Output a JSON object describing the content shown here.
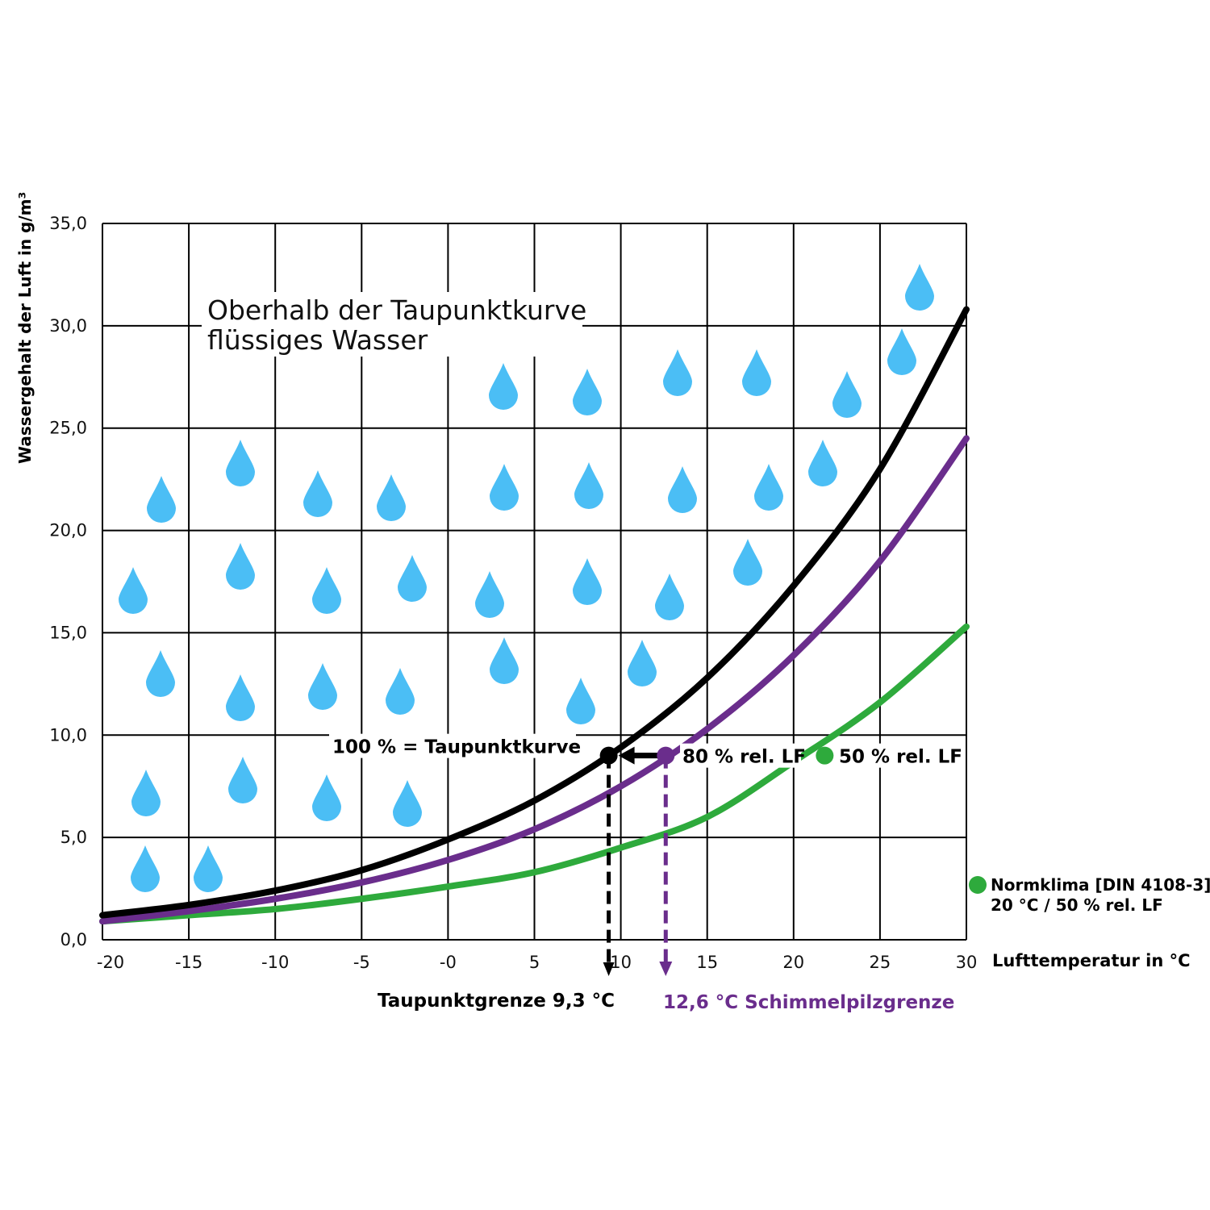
{
  "chart_data": {
    "type": "line",
    "ylabel": "Wassergehalt der Luft in g/m³",
    "xlabel": "Lufttemperatur in °C",
    "xlim": [
      -20,
      30
    ],
    "ylim": [
      0,
      35
    ],
    "grid": true,
    "x_ticks": [
      -20,
      -15,
      -10,
      -5,
      0,
      5,
      10,
      15,
      20,
      25,
      30
    ],
    "x_tick_labels": [
      "-20",
      "-15",
      "-10",
      "-5",
      "-0",
      "5",
      "10",
      "15",
      "20",
      "25",
      "30"
    ],
    "y_ticks": [
      0,
      5,
      10,
      15,
      20,
      25,
      30,
      35
    ],
    "y_tick_labels": [
      "0,0",
      "5,0",
      "10,0",
      "15,0",
      "20,0",
      "25,0",
      "30,0",
      "35,0"
    ],
    "x": [
      -20,
      -15,
      -10,
      -5,
      0,
      5,
      10,
      15,
      20,
      25,
      30
    ],
    "series": [
      {
        "name": "100 % = Taupunktkurve",
        "color": "#000000",
        "values": [
          1.2,
          1.7,
          2.4,
          3.4,
          4.9,
          6.8,
          9.4,
          12.8,
          17.3,
          23.0,
          30.8
        ]
      },
      {
        "name": "80 % rel. LF",
        "color": "#6a2d8c",
        "values": [
          0.9,
          1.4,
          2.0,
          2.8,
          3.9,
          5.4,
          7.5,
          10.3,
          13.9,
          18.5,
          24.5
        ]
      },
      {
        "name": "50 % rel. LF",
        "color": "#2eaa3c",
        "values": [
          0.9,
          1.2,
          1.5,
          2.0,
          2.6,
          3.3,
          4.5,
          6.0,
          8.7,
          11.6,
          15.3
        ]
      }
    ],
    "annotations": {
      "region_label_line1": "Oberhalb der Taupunktkurve",
      "region_label_line2": "flüssiges Wasser",
      "dew_point_limit": {
        "label": "Taupunktgrenze 9,3 °C",
        "x": 9.3,
        "y": 9.0
      },
      "mold_limit": {
        "label": "12,6 °C Schimmelpilzgrenze",
        "x": 12.6,
        "y": 9.0,
        "color": "#6a2d8c"
      },
      "normklima_point": {
        "x": 21.8,
        "y": 9.0
      },
      "normklima_line1": "Normklima  [DIN 4108-3]",
      "normklima_line2": "20 °C / 50 % rel. LF"
    },
    "drop_color": "#4bbef5"
  }
}
